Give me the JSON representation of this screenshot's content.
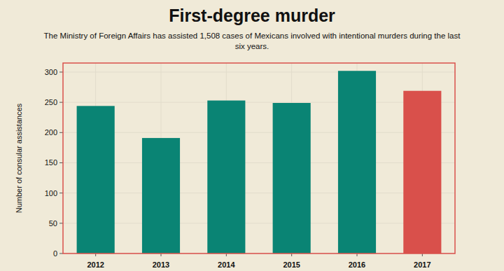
{
  "chart_data": {
    "type": "bar",
    "title": "First-degree murder",
    "subtitle": "The Ministry of Foreign Affairs has assisted 1,508 cases of Mexicans involved with intentional murders during the last six years.",
    "y_label": "Number of consular assistances",
    "categories": [
      "2012",
      "2013",
      "2014",
      "2015",
      "2016",
      "2017"
    ],
    "values": [
      244,
      191,
      253,
      249,
      302,
      269
    ],
    "colors": [
      "#0a8474",
      "#0a8474",
      "#0a8474",
      "#0a8474",
      "#0a8474",
      "#d9504b"
    ],
    "ylim": [
      0,
      315
    ],
    "yticks": [
      0,
      50,
      100,
      150,
      200,
      250,
      300
    ],
    "grid": true
  }
}
